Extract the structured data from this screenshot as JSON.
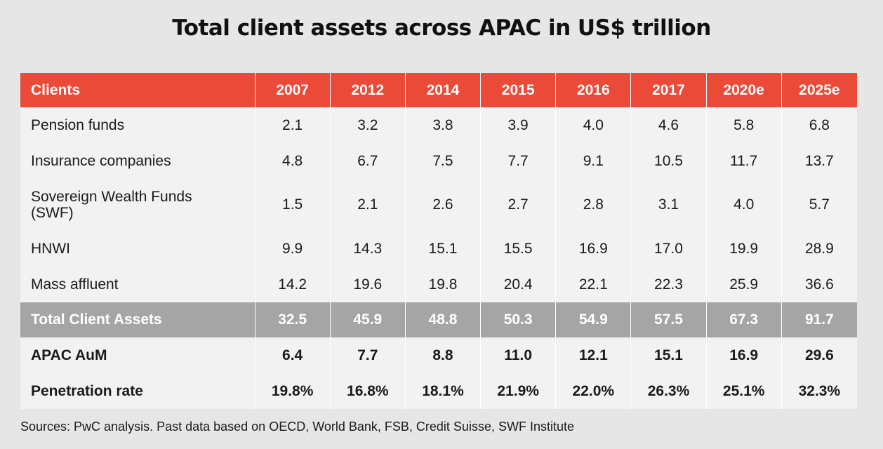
{
  "chart_data": {
    "type": "table",
    "title": "Total client assets across APAC in US$ trillion",
    "columns": [
      "Clients",
      "2007",
      "2012",
      "2014",
      "2015",
      "2016",
      "2017",
      "2020e",
      "2025e"
    ],
    "rows": [
      {
        "label": "Pension funds",
        "values": [
          "2.1",
          "3.2",
          "3.8",
          "3.9",
          "4.0",
          "4.6",
          "5.8",
          "6.8"
        ]
      },
      {
        "label": "Insurance companies",
        "values": [
          "4.8",
          "6.7",
          "7.5",
          "7.7",
          "9.1",
          "10.5",
          "11.7",
          "13.7"
        ]
      },
      {
        "label": "Sovereign Wealth Funds (SWF)",
        "values": [
          "1.5",
          "2.1",
          "2.6",
          "2.7",
          "2.8",
          "3.1",
          "4.0",
          "5.7"
        ]
      },
      {
        "label": "HNWI",
        "values": [
          "9.9",
          "14.3",
          "15.1",
          "15.5",
          "16.9",
          "17.0",
          "19.9",
          "28.9"
        ]
      },
      {
        "label": "Mass affluent",
        "values": [
          "14.2",
          "19.6",
          "19.8",
          "20.4",
          "22.1",
          "22.3",
          "25.9",
          "36.6"
        ]
      },
      {
        "label": "Total Client Assets",
        "values": [
          "32.5",
          "45.9",
          "48.8",
          "50.3",
          "54.9",
          "57.5",
          "67.3",
          "91.7"
        ]
      },
      {
        "label": "APAC AuM",
        "values": [
          "6.4",
          "7.7",
          "8.8",
          "11.0",
          "12.1",
          "15.1",
          "16.9",
          "29.6"
        ]
      },
      {
        "label": "Penetration rate",
        "values": [
          "19.8%",
          "16.8%",
          "18.1%",
          "21.9%",
          "22.0%",
          "26.3%",
          "25.1%",
          "32.3%"
        ]
      }
    ],
    "header_color": "#ec4a38",
    "total_row_color": "#a5a5a5"
  },
  "source": "Sources: PwC analysis. Past data based on OECD, World Bank, FSB, Credit Suisse, SWF Institute"
}
